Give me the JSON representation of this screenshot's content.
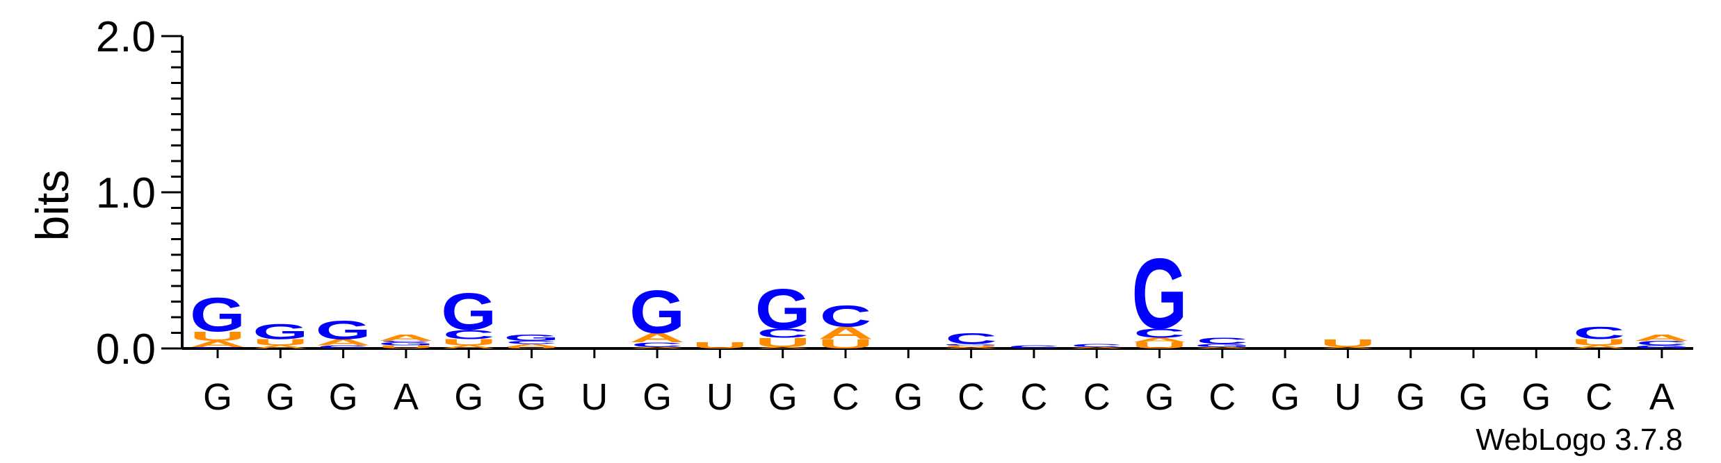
{
  "chart_data": {
    "type": "sequence-logo",
    "ylabel": "bits",
    "ylim": [
      0,
      2.0
    ],
    "yticks": [
      "0.0",
      "1.0",
      "2.0"
    ],
    "grid": false,
    "x_tick_labels": [
      "G",
      "G",
      "G",
      "A",
      "G",
      "G",
      "U",
      "G",
      "U",
      "G",
      "C",
      "G",
      "C",
      "C",
      "C",
      "G",
      "C",
      "G",
      "U",
      "G",
      "G",
      "G",
      "C",
      "A"
    ],
    "colors": {
      "G": "#0000ff",
      "C": "#0000ff",
      "A": "#ff8c00",
      "U": "#ff8c00"
    },
    "positions": [
      {
        "x": 1,
        "stack": [
          [
            "C",
            0.01
          ],
          [
            "A",
            0.04
          ],
          [
            "U",
            0.06
          ],
          [
            "G",
            0.22
          ]
        ]
      },
      {
        "x": 2,
        "stack": [
          [
            "A",
            0.02
          ],
          [
            "U",
            0.04
          ],
          [
            "G",
            0.1
          ]
        ]
      },
      {
        "x": 3,
        "stack": [
          [
            "C",
            0.02
          ],
          [
            "A",
            0.04
          ],
          [
            "G",
            0.12
          ]
        ]
      },
      {
        "x": 4,
        "stack": [
          [
            "U",
            0.02
          ],
          [
            "G",
            0.02
          ],
          [
            "C",
            0.01
          ],
          [
            "A",
            0.04
          ]
        ]
      },
      {
        "x": 5,
        "stack": [
          [
            "A",
            0.02
          ],
          [
            "U",
            0.04
          ],
          [
            "C",
            0.06
          ],
          [
            "G",
            0.24
          ]
        ]
      },
      {
        "x": 6,
        "stack": [
          [
            "U",
            0.01
          ],
          [
            "A",
            0.02
          ],
          [
            "C",
            0.02
          ],
          [
            "G",
            0.04
          ]
        ]
      },
      {
        "x": 7,
        "stack": []
      },
      {
        "x": 8,
        "stack": [
          [
            "A",
            0.01
          ],
          [
            "C",
            0.03
          ],
          [
            "A",
            0.06
          ],
          [
            "G",
            0.28
          ]
        ]
      },
      {
        "x": 9,
        "stack": [
          [
            "U",
            0.04
          ]
        ]
      },
      {
        "x": 10,
        "stack": [
          [
            "A",
            0.01
          ],
          [
            "U",
            0.06
          ],
          [
            "C",
            0.06
          ],
          [
            "G",
            0.26
          ]
        ]
      },
      {
        "x": 11,
        "stack": [
          [
            "U",
            0.06
          ],
          [
            "A",
            0.08
          ],
          [
            "C",
            0.14
          ]
        ]
      },
      {
        "x": 12,
        "stack": []
      },
      {
        "x": 13,
        "stack": [
          [
            "A",
            0.01
          ],
          [
            "U",
            0.01
          ],
          [
            "G",
            0.01
          ],
          [
            "C",
            0.07
          ]
        ]
      },
      {
        "x": 14,
        "stack": [
          [
            "C",
            0.02
          ]
        ]
      },
      {
        "x": 15,
        "stack": [
          [
            "A",
            0.01
          ],
          [
            "C",
            0.02
          ]
        ]
      },
      {
        "x": 16,
        "stack": [
          [
            "U",
            0.04
          ],
          [
            "A",
            0.03
          ],
          [
            "C",
            0.06
          ],
          [
            "G",
            0.46
          ]
        ]
      },
      {
        "x": 17,
        "stack": [
          [
            "A",
            0.01
          ],
          [
            "G",
            0.02
          ],
          [
            "C",
            0.04
          ]
        ]
      },
      {
        "x": 18,
        "stack": []
      },
      {
        "x": 19,
        "stack": [
          [
            "A",
            0.01
          ],
          [
            "U",
            0.05
          ]
        ]
      },
      {
        "x": 20,
        "stack": []
      },
      {
        "x": 21,
        "stack": []
      },
      {
        "x": 22,
        "stack": []
      },
      {
        "x": 23,
        "stack": [
          [
            "A",
            0.02
          ],
          [
            "U",
            0.04
          ],
          [
            "C",
            0.08
          ]
        ]
      },
      {
        "x": 24,
        "stack": [
          [
            "G",
            0.02
          ],
          [
            "C",
            0.03
          ],
          [
            "A",
            0.04
          ]
        ]
      }
    ]
  },
  "footer": {
    "credit": "WebLogo 3.7.8"
  }
}
